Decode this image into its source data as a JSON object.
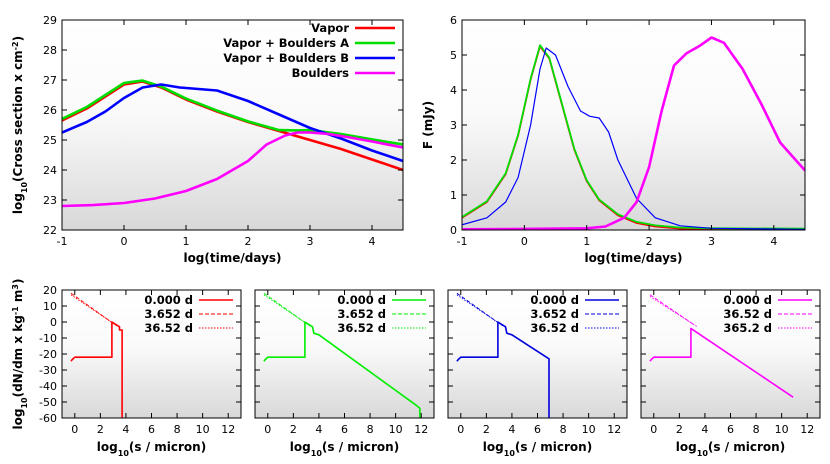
{
  "chart_data": [
    {
      "type": "line",
      "xlabel": "log(time/days)",
      "ylabel_parts": [
        "log",
        "10",
        "(Cross section x cm",
        "-2",
        ")"
      ],
      "xlim": [
        -1,
        4.5
      ],
      "ylim": [
        22,
        29
      ],
      "xticks": [
        -1,
        0,
        1,
        2,
        3,
        4
      ],
      "yticks": [
        22,
        23,
        24,
        25,
        26,
        27,
        28,
        29
      ],
      "legend_position": "top-right",
      "series": [
        {
          "name": "Vapor",
          "color": "#ff0000",
          "x": [
            -1,
            -0.6,
            -0.3,
            0,
            0.3,
            0.6,
            1,
            1.5,
            2,
            2.5,
            3,
            3.5,
            4,
            4.5
          ],
          "y": [
            25.65,
            26.05,
            26.45,
            26.85,
            26.95,
            26.75,
            26.35,
            25.95,
            25.6,
            25.3,
            25.0,
            24.7,
            24.35,
            24.0
          ]
        },
        {
          "name": "Vapor + Boulders A",
          "color": "#00dd00",
          "x": [
            -1,
            -0.6,
            -0.3,
            0,
            0.3,
            0.6,
            1,
            1.5,
            2,
            2.5,
            2.8,
            3,
            3.5,
            4,
            4.5
          ],
          "y": [
            25.7,
            26.1,
            26.5,
            26.9,
            26.98,
            26.78,
            26.38,
            25.98,
            25.62,
            25.33,
            25.32,
            25.33,
            25.2,
            25.02,
            24.85
          ]
        },
        {
          "name": "Vapor + Boulders B",
          "color": "#0000ff",
          "x": [
            -1,
            -0.6,
            -0.3,
            0,
            0.3,
            0.6,
            0.9,
            1.2,
            1.5,
            2,
            2.5,
            3,
            3.5,
            4,
            4.5
          ],
          "y": [
            25.25,
            25.6,
            25.95,
            26.4,
            26.75,
            26.85,
            26.75,
            26.7,
            26.65,
            26.3,
            25.85,
            25.4,
            25.05,
            24.65,
            24.3
          ]
        },
        {
          "name": "Boulders",
          "color": "#ff00ff",
          "x": [
            -1,
            -0.5,
            0,
            0.5,
            1,
            1.5,
            2,
            2.3,
            2.6,
            2.8,
            3,
            3.3,
            3.6,
            4,
            4.5
          ],
          "y": [
            22.8,
            22.83,
            22.9,
            23.05,
            23.3,
            23.7,
            24.3,
            24.85,
            25.15,
            25.25,
            25.25,
            25.2,
            25.1,
            24.95,
            24.75
          ]
        }
      ]
    },
    {
      "type": "line",
      "xlabel": "log(time/days)",
      "ylabel": "F (mJy)",
      "xlim": [
        -1,
        4.5
      ],
      "ylim": [
        0,
        6
      ],
      "xticks": [
        -1,
        0,
        1,
        2,
        3,
        4
      ],
      "yticks": [
        0,
        1,
        2,
        3,
        4,
        5,
        6
      ],
      "series": [
        {
          "color": "#ff0000",
          "x": [
            -1,
            -0.6,
            -0.3,
            -0.1,
            0.1,
            0.25,
            0.4,
            0.6,
            0.8,
            1.0,
            1.2,
            1.5,
            1.8,
            2.1,
            2.5,
            3,
            4.5
          ],
          "y": [
            0.35,
            0.8,
            1.6,
            2.7,
            4.3,
            5.25,
            4.9,
            3.6,
            2.3,
            1.4,
            0.85,
            0.42,
            0.2,
            0.1,
            0.04,
            0.02,
            0.01
          ]
        },
        {
          "color": "#00dd00",
          "x": [
            -1,
            -0.6,
            -0.3,
            -0.1,
            0.1,
            0.25,
            0.4,
            0.6,
            0.8,
            1.0,
            1.2,
            1.5,
            1.8,
            2.1,
            2.5,
            3,
            4.5
          ],
          "y": [
            0.37,
            0.82,
            1.62,
            2.72,
            4.32,
            5.28,
            4.92,
            3.62,
            2.32,
            1.42,
            0.87,
            0.45,
            0.23,
            0.13,
            0.07,
            0.05,
            0.04
          ]
        },
        {
          "color": "#0000ff",
          "x": [
            -1,
            -0.6,
            -0.3,
            -0.1,
            0.1,
            0.25,
            0.35,
            0.5,
            0.7,
            0.9,
            1.05,
            1.2,
            1.35,
            1.5,
            1.8,
            2.1,
            2.5,
            3,
            4.5
          ],
          "y": [
            0.15,
            0.35,
            0.8,
            1.5,
            3.0,
            4.6,
            5.2,
            5.0,
            4.1,
            3.4,
            3.25,
            3.2,
            2.8,
            2.0,
            0.9,
            0.35,
            0.12,
            0.05,
            0.02
          ]
        },
        {
          "color": "#ff00ff",
          "x": [
            -1,
            0,
            1,
            1.3,
            1.6,
            1.8,
            2.0,
            2.2,
            2.4,
            2.6,
            2.8,
            3.0,
            3.2,
            3.5,
            3.8,
            4.1,
            4.5
          ],
          "y": [
            0.02,
            0.03,
            0.05,
            0.1,
            0.35,
            0.8,
            1.8,
            3.4,
            4.7,
            5.05,
            5.25,
            5.5,
            5.35,
            4.6,
            3.6,
            2.5,
            1.7
          ]
        }
      ]
    },
    {
      "type": "line",
      "xlabel_parts": [
        "log",
        "10",
        "(s / micron)"
      ],
      "ylabel_parts": [
        "log",
        "10",
        "(dN/dm x kg",
        "-1",
        " m",
        "3",
        ")"
      ],
      "xlim": [
        -1,
        13
      ],
      "ylim": [
        -60,
        20
      ],
      "xticks": [
        0,
        2,
        4,
        6,
        8,
        10,
        12
      ],
      "yticks": [
        -60,
        -50,
        -40,
        -30,
        -20,
        -10,
        0,
        10,
        20
      ],
      "legend_position": "top-right",
      "series": [
        {
          "name": "0.000 d",
          "color": "#ff0000",
          "dash": "solid",
          "x": [
            -0.3,
            -0.2,
            0,
            0.5,
            2.9,
            2.9,
            3.5,
            3.5,
            3.7,
            3.7
          ],
          "y": [
            -24.5,
            -23.5,
            -22,
            -22,
            -22,
            0,
            -3,
            -5,
            -5,
            -60
          ]
        },
        {
          "name": "3.652 d",
          "color": "#ff0000",
          "dash": "dashed",
          "x": [
            -0.3,
            3.2
          ],
          "y": [
            18,
            -2
          ]
        },
        {
          "name": "36.52 d",
          "color": "#ff0000",
          "dash": "dotted",
          "x": [
            -0.3,
            3.4
          ],
          "y": [
            17,
            -3
          ]
        }
      ]
    },
    {
      "type": "line",
      "xlabel_parts": [
        "log",
        "10",
        "(s / micron)"
      ],
      "xlim": [
        -1,
        13
      ],
      "ylim": [
        -60,
        20
      ],
      "xticks": [
        0,
        2,
        4,
        6,
        8,
        10,
        12
      ],
      "yticks": [
        -60,
        -50,
        -40,
        -30,
        -20,
        -10,
        0,
        10,
        20
      ],
      "legend_position": "top-right",
      "series": [
        {
          "name": "0.000 d",
          "color": "#00ee00",
          "dash": "solid",
          "x": [
            -0.3,
            -0.2,
            0,
            0.5,
            2.9,
            2.9,
            3.5,
            3.6,
            4,
            11.6,
            11.9,
            11.9
          ],
          "y": [
            -24.5,
            -23.5,
            -22,
            -22,
            -22,
            0,
            -3,
            -7,
            -8,
            -52,
            -54,
            -60
          ]
        },
        {
          "name": "3.652 d",
          "color": "#00ee00",
          "dash": "dashed",
          "x": [
            -0.3,
            3.2
          ],
          "y": [
            18,
            -2
          ]
        },
        {
          "name": "36.52 d",
          "color": "#00ee00",
          "dash": "dotted",
          "x": [
            -0.3,
            3.4
          ],
          "y": [
            17,
            -3
          ]
        }
      ]
    },
    {
      "type": "line",
      "xlabel_parts": [
        "log",
        "10",
        "(s / micron)"
      ],
      "xlim": [
        -1,
        13
      ],
      "ylim": [
        -60,
        20
      ],
      "xticks": [
        0,
        2,
        4,
        6,
        8,
        10,
        12
      ],
      "yticks": [
        -60,
        -50,
        -40,
        -30,
        -20,
        -10,
        0,
        10,
        20
      ],
      "legend_position": "top-right",
      "series": [
        {
          "name": "0.000 d",
          "color": "#0000dd",
          "dash": "solid",
          "x": [
            -0.3,
            -0.2,
            0,
            0.5,
            2.9,
            2.9,
            3.5,
            3.6,
            4,
            6.9,
            6.9
          ],
          "y": [
            -24.5,
            -23.5,
            -22,
            -22,
            -22,
            0,
            -3,
            -7,
            -8,
            -23,
            -60
          ]
        },
        {
          "name": "3.652 d",
          "color": "#0000dd",
          "dash": "dashed",
          "x": [
            -0.3,
            3.2
          ],
          "y": [
            18,
            -2
          ]
        },
        {
          "name": "36.52 d",
          "color": "#0000dd",
          "dash": "dotted",
          "x": [
            -0.3,
            3.4
          ],
          "y": [
            17,
            -3
          ]
        }
      ]
    },
    {
      "type": "line",
      "xlabel_parts": [
        "log",
        "10",
        "(s / micron)"
      ],
      "xlim": [
        -1,
        13
      ],
      "ylim": [
        -60,
        20
      ],
      "xticks": [
        0,
        2,
        4,
        6,
        8,
        10,
        12
      ],
      "yticks": [
        -60,
        -50,
        -40,
        -30,
        -20,
        -10,
        0,
        10,
        20
      ],
      "legend_position": "top-right",
      "series": [
        {
          "name": "0.000 d",
          "color": "#ff00ff",
          "dash": "solid",
          "x": [
            -0.3,
            -0.2,
            0,
            0.5,
            2.9,
            2.9,
            10.9
          ],
          "y": [
            -24.5,
            -23.5,
            -22,
            -22,
            -22,
            -4,
            -47
          ]
        },
        {
          "name": "36.52 d",
          "color": "#ff00ff",
          "dash": "dashed",
          "x": [
            -0.3,
            3.2
          ],
          "y": [
            17,
            -2
          ]
        },
        {
          "name": "365.2 d",
          "color": "#ff00ff",
          "dash": "dotted",
          "x": [
            -0.3,
            3.4
          ],
          "y": [
            16,
            -3
          ]
        }
      ]
    }
  ]
}
